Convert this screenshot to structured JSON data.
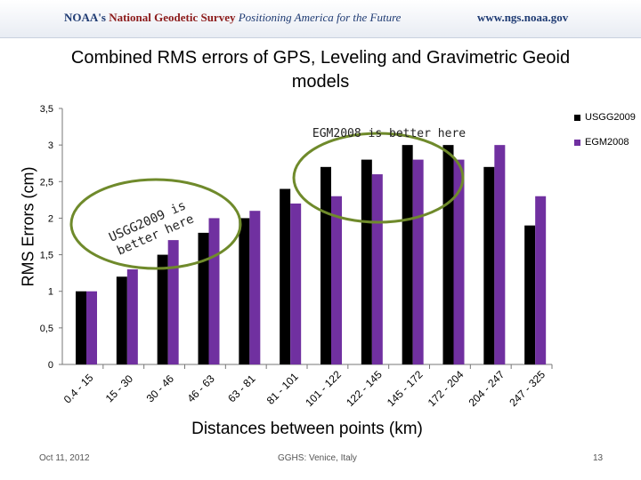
{
  "header": {
    "org": "NOAA's",
    "agency": "National Geodetic Survey",
    "tagline": "Positioning America for the Future",
    "url": "www.ngs.noaa.gov"
  },
  "footer": {
    "date": "Oct 11, 2012",
    "venue": "GGHS: Venice, Italy",
    "page": "13"
  },
  "colors": {
    "USGG2009": "#000000",
    "EGM2008": "#7030a0",
    "annotation_ellipse": "#6f8a2b"
  },
  "annotations": {
    "egm_better": "EGM2008 is better here",
    "usgg_line1": "USGG2009 is",
    "usgg_line2": "better here"
  },
  "chart_data": {
    "type": "bar",
    "title": "Combined RMS errors of GPS, Leveling and Gravimetric Geoid models",
    "xlabel": "Distances between points (km)",
    "ylabel": "RMS Errors (cm)",
    "categories": [
      "0.4 - 15",
      "15 - 30",
      "30 - 46",
      "46 - 63",
      "63 - 81",
      "81 - 101",
      "101 - 122",
      "122 - 145",
      "145 - 172",
      "172 - 204",
      "204 - 247",
      "247 - 325"
    ],
    "series": [
      {
        "name": "USGG2009",
        "values": [
          1.0,
          1.2,
          1.5,
          1.8,
          2.0,
          2.4,
          2.7,
          2.8,
          3.0,
          3.0,
          2.7,
          1.9
        ]
      },
      {
        "name": "EGM2008",
        "values": [
          1.0,
          1.3,
          1.7,
          2.0,
          2.1,
          2.2,
          2.3,
          2.6,
          2.8,
          2.8,
          3.0,
          2.3
        ]
      }
    ],
    "yticks": [
      "0",
      "0,5",
      "1",
      "1,5",
      "2",
      "2,5",
      "3",
      "3,5"
    ],
    "ylim": [
      0,
      3.5
    ],
    "grid": false,
    "legend": "top-right"
  }
}
